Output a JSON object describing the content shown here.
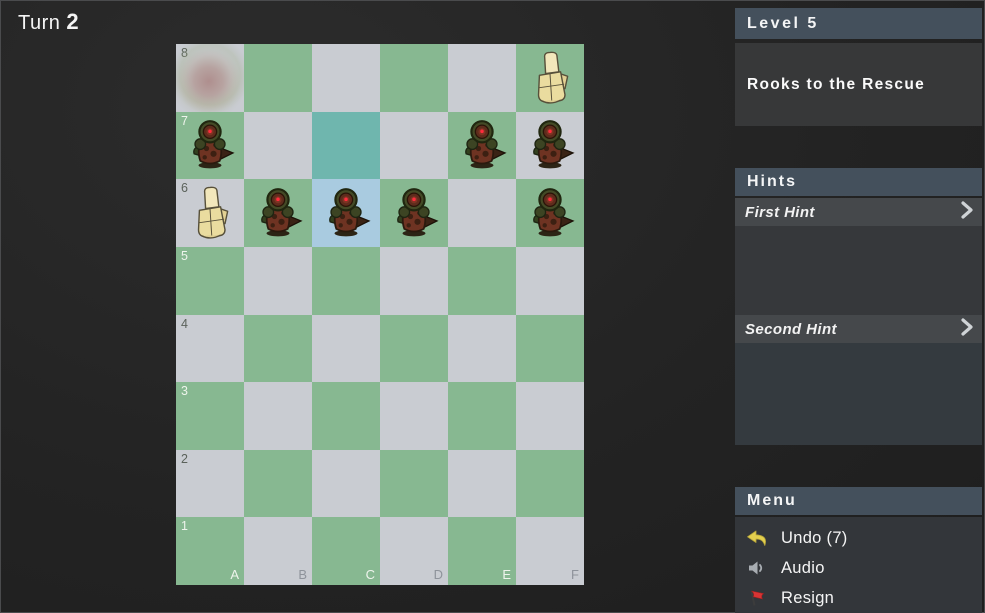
{
  "turn": {
    "label": "Turn",
    "number": "2"
  },
  "board": {
    "columns": [
      "A",
      "B",
      "C",
      "D",
      "E",
      "F"
    ],
    "rows": [
      "8",
      "7",
      "6",
      "5",
      "4",
      "3",
      "2",
      "1"
    ],
    "colors": {
      "light": "#c9ccd2",
      "green": "#87b891",
      "teal": "#6fb6ae",
      "blue": "#a9cbe0"
    },
    "highlights": [
      {
        "square": "C7",
        "color": "teal"
      },
      {
        "square": "C6",
        "color": "blue"
      }
    ],
    "decals": [
      {
        "square": "A8",
        "type": "blood-smudge"
      }
    ],
    "pieces": [
      {
        "square": "F8",
        "type": "rook",
        "color": "cream"
      },
      {
        "square": "A7",
        "type": "zombie",
        "color": "dark"
      },
      {
        "square": "E7",
        "type": "zombie",
        "color": "dark"
      },
      {
        "square": "F7",
        "type": "zombie",
        "color": "dark"
      },
      {
        "square": "A6",
        "type": "rook",
        "color": "cream"
      },
      {
        "square": "B6",
        "type": "zombie",
        "color": "dark"
      },
      {
        "square": "C6",
        "type": "zombie",
        "color": "dark"
      },
      {
        "square": "D6",
        "type": "zombie",
        "color": "dark"
      },
      {
        "square": "F6",
        "type": "zombie",
        "color": "dark"
      }
    ]
  },
  "sidebar": {
    "level": {
      "header": "Level 5",
      "title": "Rooks to the Rescue"
    },
    "hints": {
      "header": "Hints",
      "items": [
        {
          "label": "First Hint",
          "icon": "chevron-right-icon"
        },
        {
          "label": "Second Hint",
          "icon": "chevron-right-icon"
        }
      ]
    },
    "menu": {
      "header": "Menu",
      "items": [
        {
          "label": "Undo (7)",
          "icon": "undo-icon",
          "icon_color": "#e3cf4e"
        },
        {
          "label": "Audio",
          "icon": "audio-icon",
          "icon_color": "#a8adb2"
        },
        {
          "label": "Resign",
          "icon": "resign-flag-icon",
          "icon_color": "#d83434"
        }
      ]
    }
  }
}
